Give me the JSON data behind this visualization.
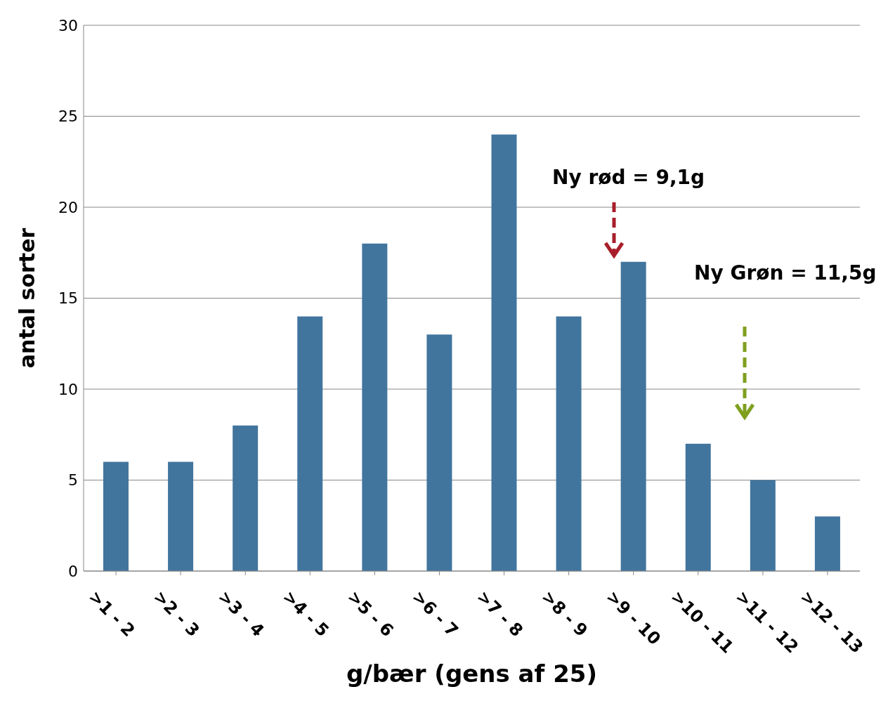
{
  "chart_data": {
    "type": "bar",
    "xlabel": "g/bær (gens af 25)",
    "ylabel": "antal sorter",
    "categories": [
      ">1 - 2",
      ">2 - 3",
      ">3 - 4",
      ">4 - 5",
      ">5 - 6",
      ">6 - 7",
      ">7 - 8",
      ">8 - 9",
      ">9 - 10",
      ">10 - 11",
      ">11 - 12",
      ">12 - 13"
    ],
    "values": [
      6,
      6,
      8,
      14,
      18,
      13,
      24,
      14,
      17,
      7,
      5,
      3
    ],
    "color": "#41759e",
    "ylim": [
      0,
      30
    ],
    "yticks": [
      0,
      5,
      10,
      15,
      20,
      25,
      30
    ],
    "grid": "y",
    "annotations": [
      "Ny rød = 9,1g",
      "Ny Grøn = 11,5g"
    ]
  }
}
